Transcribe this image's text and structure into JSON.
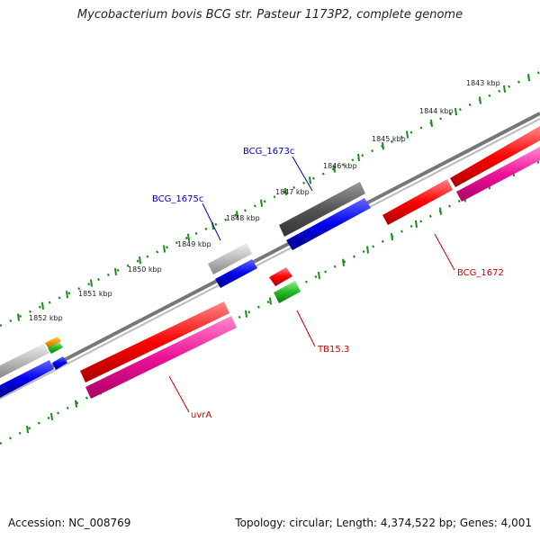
{
  "title": "Mycobacterium bovis BCG str. Pasteur 1173P2, complete genome",
  "footer": {
    "accession": "Accession: NC_008769",
    "summary": "Topology: circular; Length: 4,374,522 bp; Genes: 4,001"
  },
  "colors": {
    "backbone": "#777777",
    "tick": "#1a8a1a",
    "forward_cds": "#ff0000",
    "reverse_cds": "#ee1199",
    "gray_feature": "#b0b0b0",
    "dark_gray_feature": "#555555",
    "blue_feature": "#0000ee",
    "green_feature": "#22bb22",
    "orange_feature": "#ee9900",
    "blue_label": "#0000cc",
    "red_label": "#cc0000"
  },
  "kbp_labels": [
    "1843 kbp",
    "1844 kbp",
    "1845 kbp",
    "1846 kbp",
    "1847 kbp",
    "1848 kbp",
    "1849 kbp",
    "1850 kbp",
    "1851 kbp",
    "1852 kbp"
  ],
  "genes": [
    {
      "name": "BCG_1673c",
      "color": "blue"
    },
    {
      "name": "BCG_1675c",
      "color": "blue"
    },
    {
      "name": "BCG_1672",
      "color": "red"
    },
    {
      "name": "TB15.3",
      "color": "red"
    },
    {
      "name": "uvrA",
      "color": "red"
    }
  ]
}
